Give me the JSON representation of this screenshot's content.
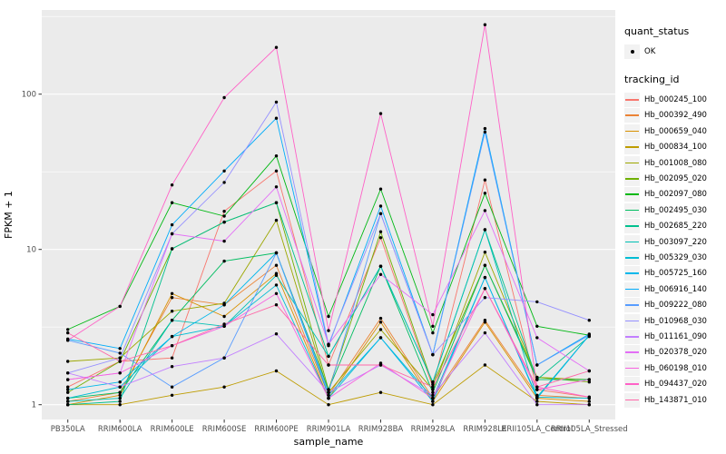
{
  "figure": {
    "xlabel": "sample_name",
    "ylabel": "FPKM + 1",
    "panel_bg": "#EBEBEB",
    "grid_color": "#FFFFFF",
    "tick_label_color": "#4D4D4D",
    "axis_title_color": "#000000"
  },
  "legend": {
    "quant_status_title": "quant_status",
    "quant_status_items": [
      {
        "label": "OK",
        "symbol": "point"
      }
    ],
    "tracking_title": "tracking_id"
  },
  "chart_data": {
    "type": "line",
    "title": "",
    "xlabel": "sample_name",
    "ylabel": "FPKM + 1",
    "yscale": "log10",
    "yticks": [
      1,
      10,
      100
    ],
    "ylim": [
      0.95,
      348
    ],
    "grid": true,
    "legend_position": "right",
    "point_color": "#000000",
    "x_categories": [
      "PB350LA",
      "RRIM600LA",
      "RRIM600LE",
      "RRIM600SE",
      "RRIM600PE",
      "RRIM901LA",
      "RRIM928BA",
      "RRIM928LA",
      "RRIM928LE",
      "RRII105LA_Control",
      "RRII105LA_Stressed"
    ],
    "series": [
      {
        "name": "Hb_000245_100",
        "color": "#F8766D",
        "values": [
          1.3,
          1.9,
          2.0,
          17.6,
          32,
          1.8,
          11.9,
          1.3,
          28,
          1.25,
          1.12
        ]
      },
      {
        "name": "Hb_000392_490",
        "color": "#EB8335",
        "values": [
          1.05,
          1.2,
          4.9,
          4.4,
          7.9,
          1.15,
          3.6,
          1.1,
          3.5,
          1.15,
          1.1
        ]
      },
      {
        "name": "Hb_000659_040",
        "color": "#D89000",
        "values": [
          1.0,
          1.15,
          5.2,
          3.7,
          7.0,
          1.1,
          3.4,
          1.05,
          3.4,
          1.1,
          1.05
        ]
      },
      {
        "name": "Hb_000834_100",
        "color": "#BE9C00",
        "values": [
          1.0,
          1.0,
          1.15,
          1.3,
          1.65,
          1.0,
          1.2,
          1.0,
          1.8,
          1.05,
          1.0
        ]
      },
      {
        "name": "Hb_001008_080",
        "color": "#9CA700",
        "values": [
          1.9,
          2.0,
          4.0,
          4.5,
          15.4,
          1.2,
          3.05,
          1.25,
          9.6,
          1.5,
          1.45
        ]
      },
      {
        "name": "Hb_002095_020",
        "color": "#6FB000",
        "values": [
          1.2,
          1.9,
          10.1,
          15.0,
          20.0,
          1.25,
          13.0,
          1.35,
          7.9,
          1.5,
          1.4
        ]
      },
      {
        "name": "Hb_002097_080",
        "color": "#00B813",
        "values": [
          3.05,
          4.3,
          20.0,
          16.4,
          40.0,
          3.7,
          24.5,
          2.9,
          23.0,
          3.2,
          2.8
        ]
      },
      {
        "name": "Hb_002495_030",
        "color": "#00BD61",
        "values": [
          1.1,
          1.2,
          3.5,
          8.4,
          9.5,
          1.25,
          7.8,
          1.2,
          7.9,
          1.45,
          1.45
        ]
      },
      {
        "name": "Hb_002685_220",
        "color": "#00C08E",
        "values": [
          1.0,
          1.05,
          10.1,
          15.0,
          20.0,
          2.05,
          7.8,
          1.4,
          13.4,
          1.45,
          2.75
        ]
      },
      {
        "name": "Hb_003097_220",
        "color": "#00C0B4",
        "values": [
          1.05,
          1.1,
          3.5,
          3.2,
          6.8,
          2.05,
          7.8,
          1.4,
          13.4,
          1.12,
          2.8
        ]
      },
      {
        "name": "Hb_005329_030",
        "color": "#00BDD4",
        "values": [
          1.1,
          1.3,
          2.75,
          3.2,
          5.9,
          1.1,
          2.7,
          1.1,
          6.6,
          1.12,
          1.1
        ]
      },
      {
        "name": "Hb_005725_160",
        "color": "#00B7EB",
        "values": [
          1.25,
          1.4,
          2.75,
          4.4,
          9.5,
          1.15,
          2.7,
          1.05,
          6.6,
          1.1,
          2.8
        ]
      },
      {
        "name": "Hb_006916_140",
        "color": "#00ACFA",
        "values": [
          2.65,
          2.3,
          14.4,
          32.0,
          70.0,
          2.4,
          19.0,
          2.1,
          60.0,
          1.8,
          2.85
        ]
      },
      {
        "name": "Hb_009222_080",
        "color": "#579CFF",
        "values": [
          2.6,
          2.15,
          1.3,
          2.0,
          9.5,
          1.2,
          17.0,
          2.1,
          57.0,
          1.8,
          2.8
        ]
      },
      {
        "name": "Hb_010968_030",
        "color": "#9590FF",
        "values": [
          1.6,
          2.0,
          12.6,
          27.0,
          89.0,
          2.45,
          17.0,
          2.1,
          4.9,
          4.6,
          3.5
        ]
      },
      {
        "name": "Hb_011161_090",
        "color": "#C27FFF",
        "values": [
          1.6,
          1.3,
          1.76,
          2.0,
          2.86,
          1.2,
          1.8,
          1.15,
          2.9,
          1.0,
          1.0
        ]
      },
      {
        "name": "Hb_020378_020",
        "color": "#E36EF6",
        "values": [
          1.45,
          1.6,
          12.6,
          11.3,
          25.3,
          2.45,
          6.9,
          3.8,
          17.8,
          2.7,
          1.65
        ]
      },
      {
        "name": "Hb_060198_010",
        "color": "#F763E0",
        "values": [
          1.45,
          1.6,
          2.4,
          3.2,
          5.2,
          1.1,
          1.85,
          1.1,
          5.6,
          1.25,
          1.45
        ]
      },
      {
        "name": "Hb_094437_020",
        "color": "#FF61C7",
        "values": [
          2.6,
          4.3,
          26.0,
          95.0,
          200.0,
          3.0,
          75.0,
          3.2,
          280.0,
          1.3,
          1.12
        ]
      },
      {
        "name": "Hb_143871_010",
        "color": "#FF68A8",
        "values": [
          2.9,
          1.9,
          2.4,
          3.3,
          4.4,
          1.8,
          1.8,
          1.3,
          5.6,
          1.3,
          1.65
        ]
      }
    ]
  }
}
